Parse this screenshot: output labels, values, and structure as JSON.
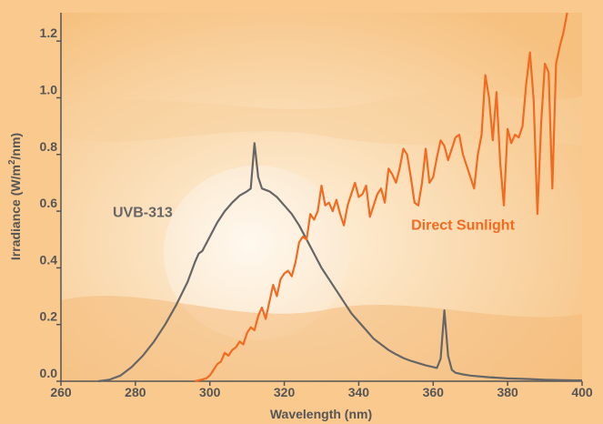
{
  "chart_data": {
    "type": "line",
    "xlabel": "Wavelength (nm)",
    "ylabel_parts": {
      "main": "Irradiance (W/m",
      "sup": "2",
      "tail": "/nm)"
    },
    "xlim": [
      260,
      400
    ],
    "ylim": [
      0,
      1.3
    ],
    "x_ticks": [
      260,
      280,
      300,
      320,
      340,
      360,
      380,
      400
    ],
    "x_tick_labels": [
      "260",
      "280",
      "300",
      "320",
      "340",
      "360",
      "380",
      "400"
    ],
    "y_ticks": [
      0,
      0.2,
      0.4,
      0.6,
      0.8,
      1.0,
      1.2
    ],
    "y_tick_labels": [
      "0.0",
      "0.2",
      "0.4",
      "0.6",
      "0.8",
      "1.0",
      "1.2"
    ],
    "grid": false,
    "series": [
      {
        "name": "UVB-313",
        "color": "#666666",
        "points": [
          [
            270,
            0.0
          ],
          [
            273,
            0.005
          ],
          [
            276,
            0.02
          ],
          [
            279,
            0.05
          ],
          [
            282,
            0.09
          ],
          [
            285,
            0.14
          ],
          [
            288,
            0.2
          ],
          [
            291,
            0.27
          ],
          [
            294,
            0.35
          ],
          [
            296,
            0.42
          ],
          [
            297,
            0.45
          ],
          [
            298,
            0.46
          ],
          [
            300,
            0.51
          ],
          [
            302,
            0.56
          ],
          [
            304,
            0.6
          ],
          [
            306,
            0.63
          ],
          [
            308,
            0.655
          ],
          [
            310,
            0.67
          ],
          [
            311,
            0.68
          ],
          [
            312,
            0.84
          ],
          [
            313,
            0.72
          ],
          [
            314,
            0.68
          ],
          [
            316,
            0.67
          ],
          [
            318,
            0.65
          ],
          [
            320,
            0.62
          ],
          [
            322,
            0.59
          ],
          [
            324,
            0.55
          ],
          [
            326,
            0.5
          ],
          [
            328,
            0.45
          ],
          [
            330,
            0.4
          ],
          [
            332,
            0.36
          ],
          [
            334,
            0.32
          ],
          [
            336,
            0.28
          ],
          [
            338,
            0.24
          ],
          [
            340,
            0.21
          ],
          [
            342,
            0.18
          ],
          [
            344,
            0.15
          ],
          [
            346,
            0.13
          ],
          [
            348,
            0.11
          ],
          [
            350,
            0.095
          ],
          [
            352,
            0.082
          ],
          [
            354,
            0.072
          ],
          [
            356,
            0.064
          ],
          [
            358,
            0.056
          ],
          [
            360,
            0.05
          ],
          [
            361,
            0.047
          ],
          [
            362,
            0.08
          ],
          [
            363,
            0.25
          ],
          [
            364,
            0.09
          ],
          [
            365,
            0.04
          ],
          [
            366,
            0.03
          ],
          [
            368,
            0.024
          ],
          [
            370,
            0.02
          ],
          [
            375,
            0.014
          ],
          [
            380,
            0.01
          ],
          [
            385,
            0.008
          ],
          [
            390,
            0.005
          ],
          [
            395,
            0.004
          ],
          [
            400,
            0.003
          ]
        ]
      },
      {
        "name": "Direct Sunlight",
        "color": "#f26b21",
        "points": [
          [
            296,
            0.0
          ],
          [
            297,
            0.003
          ],
          [
            298,
            0.006
          ],
          [
            299,
            0.01
          ],
          [
            300,
            0.02
          ],
          [
            301,
            0.04
          ],
          [
            302,
            0.06
          ],
          [
            303,
            0.07
          ],
          [
            304,
            0.1
          ],
          [
            305,
            0.09
          ],
          [
            306,
            0.11
          ],
          [
            307,
            0.12
          ],
          [
            308,
            0.14
          ],
          [
            309,
            0.13
          ],
          [
            310,
            0.17
          ],
          [
            311,
            0.19
          ],
          [
            312,
            0.18
          ],
          [
            313,
            0.23
          ],
          [
            314,
            0.26
          ],
          [
            315,
            0.22
          ],
          [
            316,
            0.28
          ],
          [
            317,
            0.34
          ],
          [
            318,
            0.3
          ],
          [
            319,
            0.36
          ],
          [
            320,
            0.38
          ],
          [
            321,
            0.39
          ],
          [
            322,
            0.37
          ],
          [
            323,
            0.42
          ],
          [
            324,
            0.49
          ],
          [
            325,
            0.51
          ],
          [
            326,
            0.5
          ],
          [
            327,
            0.59
          ],
          [
            328,
            0.57
          ],
          [
            329,
            0.6
          ],
          [
            330,
            0.69
          ],
          [
            331,
            0.62
          ],
          [
            332,
            0.63
          ],
          [
            333,
            0.6
          ],
          [
            334,
            0.64
          ],
          [
            335,
            0.59
          ],
          [
            336,
            0.55
          ],
          [
            337,
            0.62
          ],
          [
            338,
            0.66
          ],
          [
            339,
            0.7
          ],
          [
            340,
            0.65
          ],
          [
            341,
            0.66
          ],
          [
            342,
            0.69
          ],
          [
            343,
            0.58
          ],
          [
            344,
            0.62
          ],
          [
            345,
            0.66
          ],
          [
            346,
            0.68
          ],
          [
            347,
            0.63
          ],
          [
            348,
            0.75
          ],
          [
            349,
            0.73
          ],
          [
            350,
            0.7
          ],
          [
            351,
            0.75
          ],
          [
            352,
            0.82
          ],
          [
            353,
            0.8
          ],
          [
            354,
            0.72
          ],
          [
            355,
            0.63
          ],
          [
            356,
            0.62
          ],
          [
            357,
            0.7
          ],
          [
            358,
            0.82
          ],
          [
            359,
            0.7
          ],
          [
            360,
            0.72
          ],
          [
            361,
            0.79
          ],
          [
            362,
            0.85
          ],
          [
            363,
            0.83
          ],
          [
            364,
            0.78
          ],
          [
            365,
            0.82
          ],
          [
            366,
            0.86
          ],
          [
            367,
            0.87
          ],
          [
            368,
            0.8
          ],
          [
            369,
            0.76
          ],
          [
            370,
            0.72
          ],
          [
            371,
            0.68
          ],
          [
            372,
            0.8
          ],
          [
            373,
            0.87
          ],
          [
            374,
            1.08
          ],
          [
            375,
            1.0
          ],
          [
            376,
            0.85
          ],
          [
            377,
            1.02
          ],
          [
            378,
            0.77
          ],
          [
            379,
            0.62
          ],
          [
            380,
            0.89
          ],
          [
            381,
            0.84
          ],
          [
            382,
            0.87
          ],
          [
            383,
            0.86
          ],
          [
            384,
            0.9
          ],
          [
            385,
            1.05
          ],
          [
            386,
            1.16
          ],
          [
            387,
            0.99
          ],
          [
            388,
            0.59
          ],
          [
            389,
            0.91
          ],
          [
            390,
            1.12
          ],
          [
            391,
            1.09
          ],
          [
            392,
            0.68
          ],
          [
            393,
            1.12
          ],
          [
            394,
            1.18
          ],
          [
            395,
            1.23
          ],
          [
            396,
            1.3
          ]
        ]
      }
    ],
    "annotations": [
      {
        "text": "UVB-313",
        "series": 0,
        "x": 290,
        "y": 0.58,
        "color": "#666666"
      },
      {
        "text": "Direct Sunlight",
        "series": 1,
        "x": 368,
        "y": 0.535,
        "color": "#f26b21"
      }
    ]
  }
}
